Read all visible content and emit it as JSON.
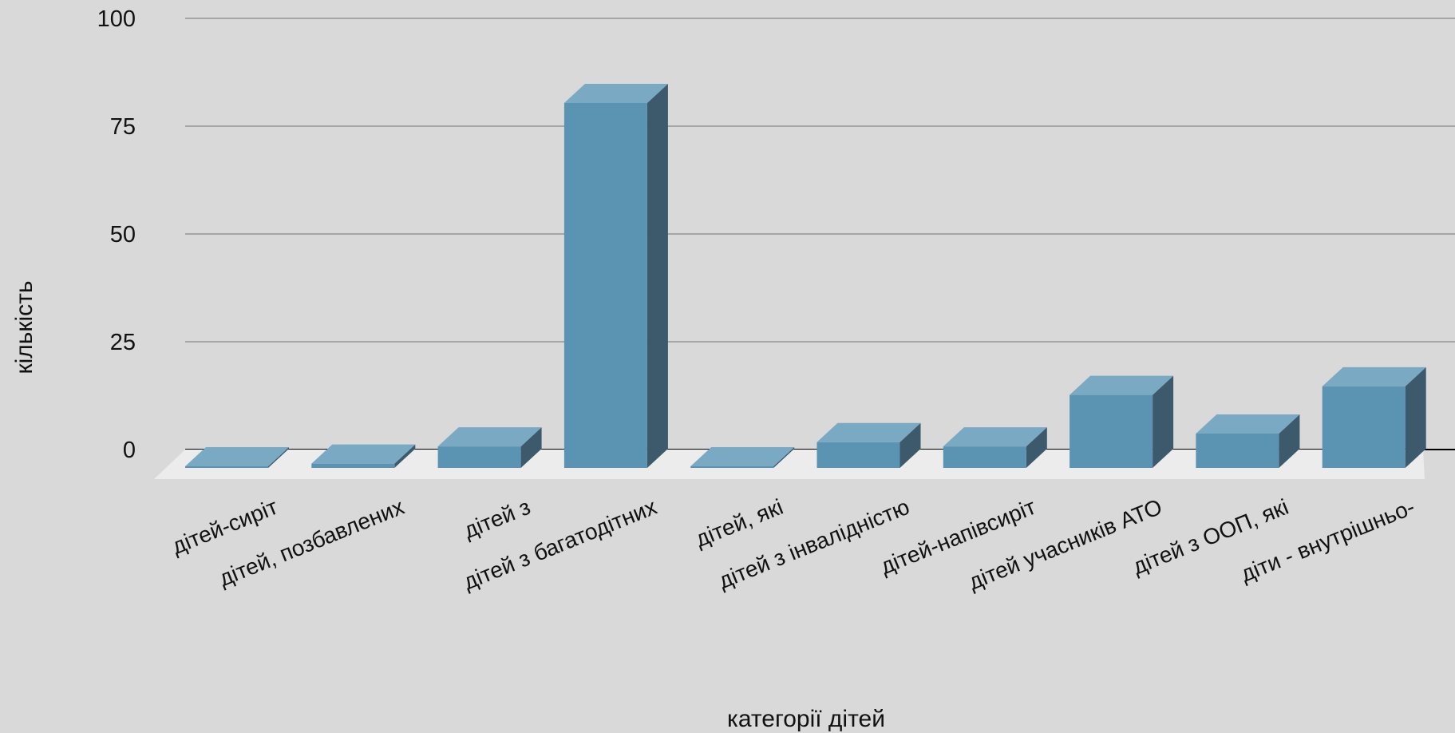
{
  "chart_data": {
    "type": "bar",
    "style": "3d-column",
    "xlabel": "категорії дітей",
    "ylabel": "кількість",
    "ylim": [
      0,
      100
    ],
    "yticks": [
      0,
      25,
      50,
      75,
      100
    ],
    "grid": true,
    "categories": [
      "дітей-сиріт",
      "дітей, позбавлених",
      "дітей з",
      "дітей з багатодітних",
      "дітей, які",
      "дітей з інвалідністю",
      "дітей-напівсиріт",
      "дітей учасників АТО",
      "дітей з ООП, які",
      "діти - внутрішньо-"
    ],
    "values": [
      0,
      1,
      5,
      85,
      0,
      6,
      5,
      17,
      8,
      19
    ],
    "colors": {
      "bar_front": "#5b93b2",
      "bar_top": "#79a9c3",
      "bar_side": "#3c5a6c",
      "floor": "#ececec",
      "grid": "#a6a6a6",
      "baseline": "#000000",
      "background": "#d9d9d9"
    }
  }
}
